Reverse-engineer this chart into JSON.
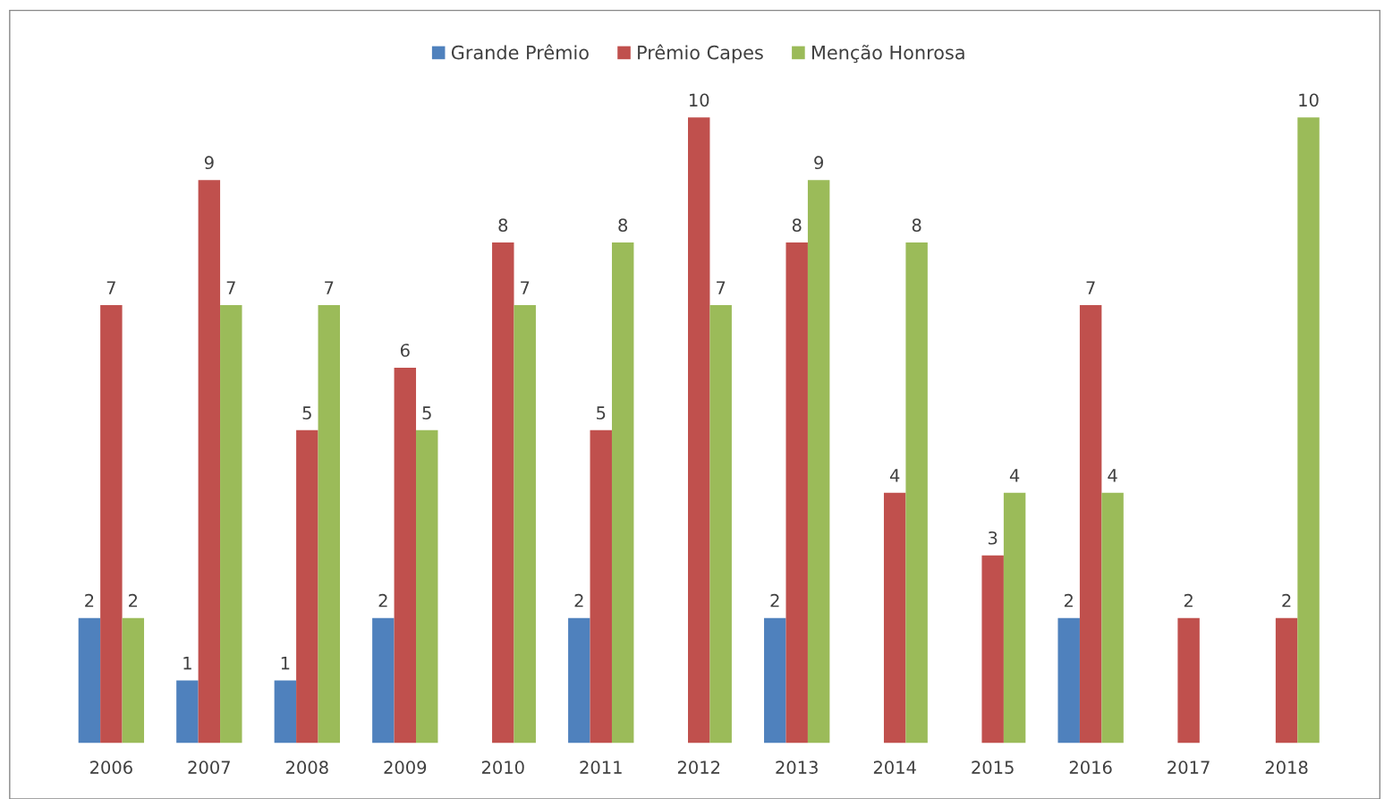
{
  "chart_data": {
    "type": "bar",
    "categories": [
      "2006",
      "2007",
      "2008",
      "2009",
      "2010",
      "2011",
      "2012",
      "2013",
      "2014",
      "2015",
      "2016",
      "2017",
      "2018"
    ],
    "series": [
      {
        "name": "Grande Prêmio",
        "color": "#4f81bd",
        "values": [
          2,
          1,
          1,
          2,
          0,
          2,
          0,
          2,
          0,
          0,
          2,
          0,
          0
        ],
        "value_labels": [
          "2",
          "1",
          "1",
          "2",
          null,
          "2",
          null,
          "2",
          null,
          null,
          "2",
          null,
          null
        ]
      },
      {
        "name": "Prêmio Capes",
        "color": "#c0504d",
        "values": [
          7,
          9,
          5,
          6,
          8,
          5,
          10,
          8,
          4,
          3,
          7,
          2,
          2
        ],
        "value_labels": [
          "7",
          "9",
          "5",
          "6",
          "8",
          "5",
          "10",
          "8",
          "4",
          "3",
          "7",
          "2",
          "2"
        ]
      },
      {
        "name": "Menção Honrosa",
        "color": "#9bbb59",
        "values": [
          2,
          7,
          7,
          5,
          7,
          8,
          7,
          9,
          8,
          4,
          4,
          0,
          10
        ],
        "value_labels": [
          "2",
          "7",
          "7",
          "5",
          "7",
          "8",
          "7",
          "9",
          "8",
          "4",
          "4",
          null,
          "10"
        ]
      }
    ],
    "legend": "top",
    "grid": false,
    "tick_labels": "x"
  }
}
